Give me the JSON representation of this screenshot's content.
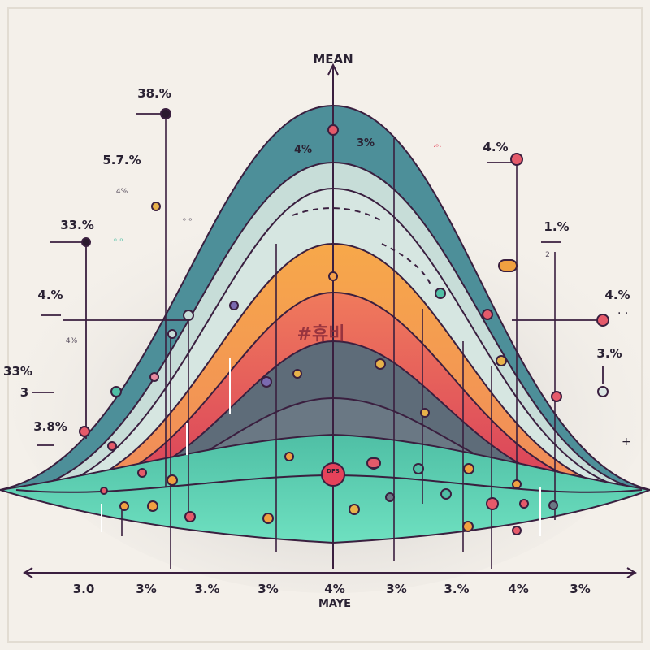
{
  "axis": {
    "top_label": "MEAN",
    "bottom_label": "MAYE"
  },
  "center_label": "#휴비",
  "peak_labels": {
    "left": "4%",
    "right": "3%"
  },
  "x_ticks": [
    "3.0",
    "3%",
    "3.%",
    "3%",
    "4%",
    "3%",
    "3.%",
    "4%",
    "3%"
  ],
  "left_labels": [
    "38.%",
    "5.7.%",
    "33.%",
    "4.%",
    "33%",
    "3",
    "3.8%"
  ],
  "left_small": [
    "4%",
    "4%"
  ],
  "right_labels": [
    "4.%",
    "1.%",
    "4.%",
    "3.%"
  ],
  "right_small": [
    "2"
  ],
  "marker_label": "DFS",
  "colors": {
    "outer": "#4d8f99",
    "light": "#c7ddd8",
    "orange": "#f5a04a",
    "red": "#e4505c",
    "slate": "#5e6c79",
    "teal": "#5fd4b4",
    "line": "#3a1f3f"
  }
}
